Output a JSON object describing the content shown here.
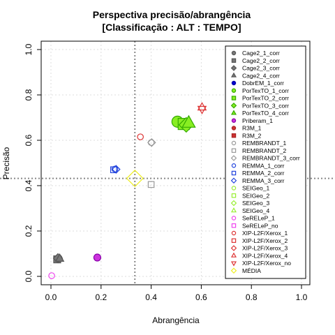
{
  "chart_data": {
    "type": "scatter",
    "title": "Perspectiva precisão/abrangência",
    "subtitle": "[Classificação : ALT : TEMPO]",
    "xlabel": "Abrangência",
    "ylabel": "Precisão",
    "xlim": [
      0,
      1
    ],
    "ylim": [
      0,
      1
    ],
    "x_ticks": [
      "0.0",
      "0.2",
      "0.4",
      "0.6",
      "0.8",
      "1.0"
    ],
    "y_ticks": [
      "0.0",
      "0.2",
      "0.4",
      "0.6",
      "0.8",
      "1.0"
    ],
    "grid": true,
    "legend_position": "top-right",
    "reference_lines": {
      "x": 0.335,
      "y": 0.432
    },
    "series": [
      {
        "name": "Cage2_1_corr",
        "color": "#555555",
        "fill": "#777777",
        "marker": "circle",
        "filled": true,
        "points": [
          {
            "x": 0.03,
            "y": 0.08
          }
        ]
      },
      {
        "name": "Cage2_2_corr",
        "color": "#555555",
        "fill": "#777777",
        "marker": "square",
        "filled": true,
        "points": [
          {
            "x": 0.025,
            "y": 0.075
          }
        ]
      },
      {
        "name": "Cage2_3_corr",
        "color": "#555555",
        "fill": "#777777",
        "marker": "diamond",
        "filled": true,
        "points": [
          {
            "x": 0.028,
            "y": 0.08
          }
        ]
      },
      {
        "name": "Cage2_4_corr",
        "color": "#555555",
        "fill": "#777777",
        "marker": "triangle",
        "filled": true,
        "points": [
          {
            "x": 0.035,
            "y": 0.078
          }
        ]
      },
      {
        "name": "DobrEM_1_corr",
        "color": "#0000aa",
        "fill": "#0000cc",
        "marker": "circle",
        "filled": true,
        "points": []
      },
      {
        "name": "PorTexTO_1_corr",
        "color": "#33aa00",
        "fill": "#88ee22",
        "marker": "circle",
        "filled": true,
        "points": [
          {
            "x": 0.505,
            "y": 0.682
          }
        ]
      },
      {
        "name": "PorTexTO_2_corr",
        "color": "#33aa00",
        "fill": "#88ee22",
        "marker": "square",
        "filled": true,
        "points": [
          {
            "x": 0.53,
            "y": 0.672
          }
        ]
      },
      {
        "name": "PorTexTO_3_corr",
        "color": "#33aa00",
        "fill": "#88ee22",
        "marker": "diamond",
        "filled": true,
        "points": [
          {
            "x": 0.54,
            "y": 0.668
          }
        ]
      },
      {
        "name": "PorTexTO_4_corr",
        "color": "#33aa00",
        "fill": "#88ee22",
        "marker": "triangle",
        "filled": true,
        "points": [
          {
            "x": 0.55,
            "y": 0.676
          }
        ]
      },
      {
        "name": "Priberam_1",
        "color": "#8800aa",
        "fill": "#cc33dd",
        "marker": "circle",
        "filled": true,
        "points": [
          {
            "x": 0.185,
            "y": 0.083
          }
        ]
      },
      {
        "name": "R3M_1",
        "color": "#aa2222",
        "fill": "#cc3333",
        "marker": "circle",
        "filled": true,
        "points": []
      },
      {
        "name": "R3M_2",
        "color": "#aa2222",
        "fill": "#cc3333",
        "marker": "square",
        "filled": true,
        "points": []
      },
      {
        "name": "REMBRANDT_1",
        "color": "#999999",
        "fill": "none",
        "marker": "circle",
        "filled": false,
        "points": [
          {
            "x": 0.4,
            "y": 0.59
          }
        ]
      },
      {
        "name": "REMBRANDT_2",
        "color": "#999999",
        "fill": "none",
        "marker": "square",
        "filled": false,
        "points": [
          {
            "x": 0.4,
            "y": 0.405
          }
        ]
      },
      {
        "name": "REMBRANDT_3_corr",
        "color": "#999999",
        "fill": "none",
        "marker": "diamond",
        "filled": false,
        "points": [
          {
            "x": 0.402,
            "y": 0.59
          }
        ]
      },
      {
        "name": "REMMA_1_corr",
        "color": "#2244dd",
        "fill": "none",
        "marker": "circle",
        "filled": false,
        "points": [
          {
            "x": 0.255,
            "y": 0.473
          }
        ]
      },
      {
        "name": "REMMA_2_corr",
        "color": "#2244dd",
        "fill": "none",
        "marker": "square",
        "filled": false,
        "points": [
          {
            "x": 0.25,
            "y": 0.47
          }
        ]
      },
      {
        "name": "REMMA_3_corr",
        "color": "#2244dd",
        "fill": "none",
        "marker": "diamond",
        "filled": false,
        "points": [
          {
            "x": 0.26,
            "y": 0.472
          }
        ]
      },
      {
        "name": "SEIGeo_1",
        "color": "#99ee33",
        "fill": "none",
        "marker": "circle",
        "filled": false,
        "points": []
      },
      {
        "name": "SEIGeo_2",
        "color": "#99ee33",
        "fill": "none",
        "marker": "square",
        "filled": false,
        "points": []
      },
      {
        "name": "SEIGeo_3",
        "color": "#99ee33",
        "fill": "none",
        "marker": "diamond",
        "filled": false,
        "points": []
      },
      {
        "name": "SEIGeo_4",
        "color": "#99ee33",
        "fill": "none",
        "marker": "triangle",
        "filled": false,
        "points": []
      },
      {
        "name": "SeRELeP_1",
        "color": "#ee44ee",
        "fill": "none",
        "marker": "circle",
        "filled": false,
        "points": [
          {
            "x": 0.003,
            "y": 0.003
          }
        ]
      },
      {
        "name": "SeRELeP_no",
        "color": "#ee44ee",
        "fill": "none",
        "marker": "square",
        "filled": false,
        "points": []
      },
      {
        "name": "XIP-L2F/Xerox_1",
        "color": "#dd3333",
        "fill": "none",
        "marker": "circle",
        "filled": false,
        "points": [
          {
            "x": 0.357,
            "y": 0.615
          }
        ]
      },
      {
        "name": "XIP-L2F/Xerox_2",
        "color": "#dd3333",
        "fill": "none",
        "marker": "square",
        "filled": false,
        "points": []
      },
      {
        "name": "XIP-L2F/Xerox_3",
        "color": "#dd3333",
        "fill": "none",
        "marker": "diamond",
        "filled": false,
        "points": []
      },
      {
        "name": "XIP-L2F/Xerox_4",
        "color": "#dd3333",
        "fill": "none",
        "marker": "triangle",
        "filled": false,
        "points": [
          {
            "x": 0.603,
            "y": 0.745
          }
        ]
      },
      {
        "name": "XIP-L2F/Xerox_no",
        "color": "#dd3333",
        "fill": "none",
        "marker": "triangle-down",
        "filled": false,
        "points": [
          {
            "x": 0.603,
            "y": 0.738
          }
        ]
      },
      {
        "name": "MÉDIA",
        "color": "#eeee22",
        "fill": "none",
        "marker": "diamond",
        "filled": false,
        "points": [
          {
            "x": 0.335,
            "y": 0.432
          }
        ]
      }
    ]
  }
}
